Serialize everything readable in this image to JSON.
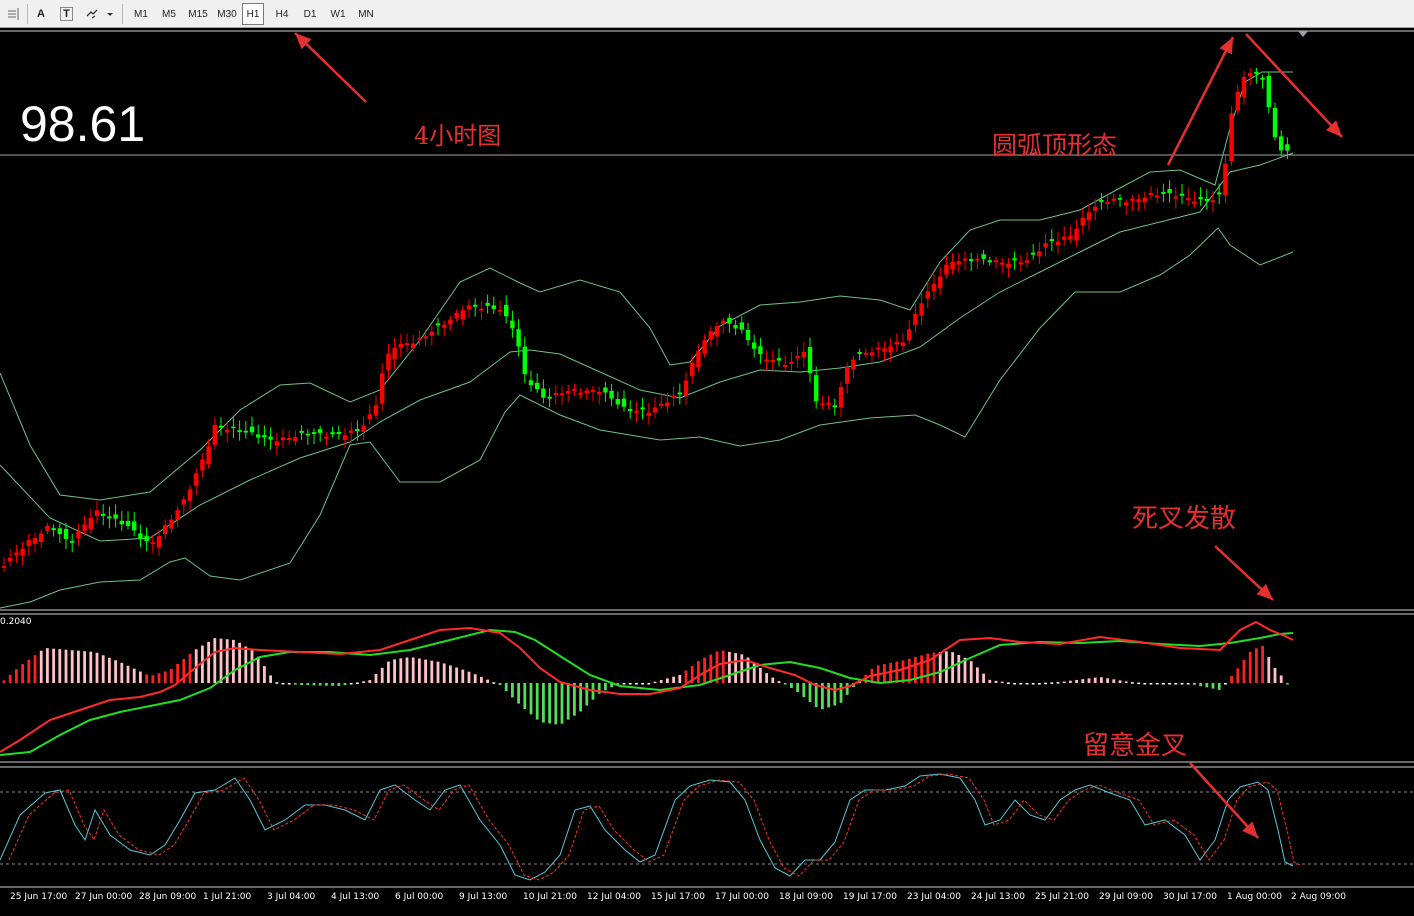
{
  "toolbar": {
    "tools": [
      {
        "name": "crosshair-icon"
      },
      {
        "name": "text-label-icon",
        "glyph": "A"
      },
      {
        "name": "text-box-icon",
        "glyph": "T"
      },
      {
        "name": "arrows-tool-icon"
      }
    ],
    "timeframes": [
      "M1",
      "M5",
      "M15",
      "M30",
      "H1",
      "H4",
      "D1",
      "W1",
      "MN"
    ],
    "active_timeframe": "H1"
  },
  "price_label": "98.61",
  "annotations": {
    "timeframe_note": "4小时图",
    "pattern_note": "圆弧顶形态",
    "macd_note": "死叉发散",
    "kdj_note": "留意金叉"
  },
  "macd_scale_label": "0.2040",
  "x_axis_labels": [
    "25 Jun 17:00",
    "27 Jun 00:00",
    "28 Jun 09:00",
    "1 Jul 21:00",
    "3 Jul 04:00",
    "4 Jul 13:00",
    "6 Jul 00:00",
    "9 Jul 13:00",
    "10 Jul 21:00",
    "12 Jul 04:00",
    "15 Jul 17:00",
    "17 Jul 00:00",
    "18 Jul 09:00",
    "19 Jul 17:00",
    "23 Jul 04:00",
    "24 Jul 13:00",
    "25 Jul 21:00",
    "29 Jul 09:00",
    "30 Jul 17:00",
    "1 Aug 00:00",
    "2 Aug 09:00"
  ],
  "colors": {
    "bull_candle": "#ff0000",
    "bear_candle": "#00ff00",
    "bollinger": "#6fc08a",
    "macd_fast": "#ff2a2a",
    "macd_slow": "#22dd22",
    "stoch_main": "#57c8d8",
    "stoch_signal": "#ff3030",
    "annotation": "#e53030"
  }
}
